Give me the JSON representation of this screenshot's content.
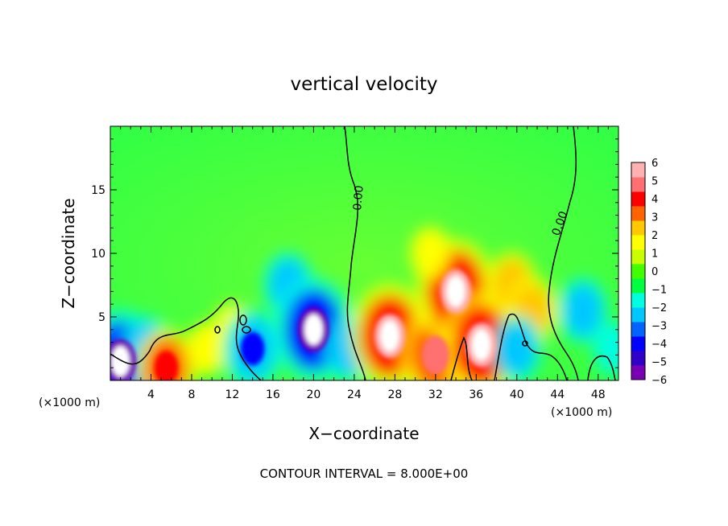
{
  "chart_data": {
    "type": "heatmap",
    "title": "vertical velocity",
    "xlabel": "X−coordinate",
    "ylabel": "Z−coordinate",
    "x_unit_left": "(×1000 m)",
    "x_unit_right": "(×1000 m)",
    "footer": "CONTOUR INTERVAL = 8.000E+00",
    "xlim": [
      0,
      50
    ],
    "ylim": [
      0,
      20
    ],
    "x_ticks": [
      4,
      8,
      12,
      16,
      20,
      24,
      28,
      32,
      36,
      40,
      44,
      48
    ],
    "x_tick_labels": [
      "4",
      "8",
      "12",
      "16",
      "20",
      "24",
      "28",
      "32",
      "36",
      "40",
      "44",
      "48"
    ],
    "y_ticks": [
      5,
      10,
      15
    ],
    "y_tick_labels": [
      "5",
      "10",
      "15"
    ],
    "colorbar": {
      "min": -6,
      "max": 6,
      "tick_values": [
        6,
        5,
        4,
        3,
        2,
        1,
        0,
        -1,
        -2,
        -3,
        -4,
        -5,
        -6
      ],
      "tick_labels": [
        "6",
        "5",
        "4",
        "3",
        "2",
        "1",
        "0",
        "−1",
        "−2",
        "−3",
        "−4",
        "−5",
        "−6"
      ],
      "colors": [
        "#7a00b5",
        "#3000c8",
        "#0000ff",
        "#0064ff",
        "#00c8ff",
        "#00ffe0",
        "#00ff40",
        "#40ff00",
        "#c8ff00",
        "#ffff00",
        "#ffc800",
        "#ff6400",
        "#ff0000",
        "#ff7070",
        "#ffb0b0"
      ]
    },
    "contour_labels": [
      "0.00",
      "0.00"
    ],
    "features": [
      {
        "x": 1.0,
        "z": 1.5,
        "w": -6
      },
      {
        "x": 3.5,
        "z": 2.5,
        "w": -3
      },
      {
        "x": 5.5,
        "z": 1.0,
        "w": 4
      },
      {
        "x": 9.5,
        "z": 2.5,
        "w": 2
      },
      {
        "x": 12.0,
        "z": 4.0,
        "w": 2
      },
      {
        "x": 14.0,
        "z": 2.5,
        "w": -4
      },
      {
        "x": 17.5,
        "z": 7.5,
        "w": -3
      },
      {
        "x": 20.0,
        "z": 4.0,
        "w": -6
      },
      {
        "x": 23.5,
        "z": 2.5,
        "w": -3
      },
      {
        "x": 27.5,
        "z": 3.5,
        "w": 6
      },
      {
        "x": 32.0,
        "z": 2.0,
        "w": 5
      },
      {
        "x": 34.0,
        "z": 7.0,
        "w": 6
      },
      {
        "x": 36.5,
        "z": 2.8,
        "w": 6
      },
      {
        "x": 31.5,
        "z": 10.0,
        "w": 2
      },
      {
        "x": 39.5,
        "z": 7.5,
        "w": 3
      },
      {
        "x": 41.5,
        "z": 5.5,
        "w": 3
      },
      {
        "x": 40.0,
        "z": 2.5,
        "w": -3
      },
      {
        "x": 46.5,
        "z": 5.5,
        "w": -3
      },
      {
        "x": 49.5,
        "z": 2.5,
        "w": -2
      }
    ]
  }
}
